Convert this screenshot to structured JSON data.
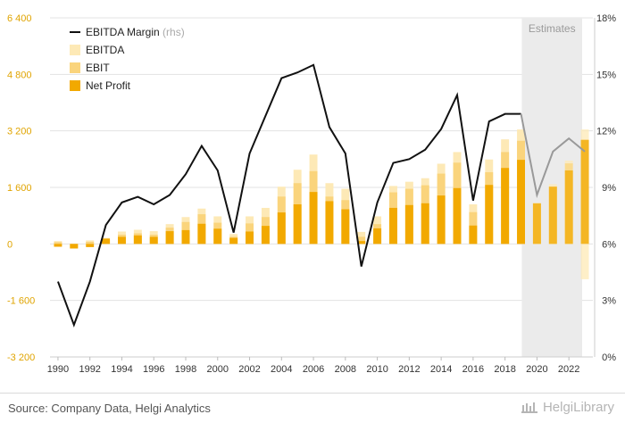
{
  "chart_data": {
    "type": "bar+line",
    "title": "",
    "estimates_label": "Estimates",
    "estimate_from_year": 2020,
    "years": [
      1990,
      1991,
      1992,
      1993,
      1994,
      1995,
      1996,
      1997,
      1998,
      1999,
      2000,
      2001,
      2002,
      2003,
      2004,
      2005,
      2006,
      2007,
      2008,
      2009,
      2010,
      2011,
      2012,
      2013,
      2014,
      2015,
      2016,
      2017,
      2018,
      2019,
      2020,
      2021,
      2022,
      2023
    ],
    "x_tick_labels": [
      "1990",
      "1992",
      "1994",
      "1996",
      "1998",
      "2000",
      "2002",
      "2004",
      "2006",
      "2008",
      "2010",
      "2012",
      "2014",
      "2016",
      "2018",
      "2020",
      "2022"
    ],
    "left_axis": {
      "ylim": [
        -3200,
        6400
      ],
      "ticks": [
        "-3 200",
        "-1 600",
        "0",
        "1 600",
        "3 200",
        "4 800",
        "6 400"
      ],
      "tick_values": [
        -3200,
        -1600,
        0,
        1600,
        3200,
        4800,
        6400
      ]
    },
    "right_axis": {
      "ylim": [
        0,
        18
      ],
      "ticks": [
        "0%",
        "3%",
        "6%",
        "9%",
        "12%",
        "15%",
        "18%"
      ],
      "tick_values": [
        0,
        3,
        6,
        9,
        12,
        15,
        18
      ]
    },
    "series": [
      {
        "name": "EBITDA",
        "kind": "bar",
        "color": "#fde9b6",
        "values": [
          80,
          -80,
          100,
          170,
          350,
          400,
          360,
          560,
          760,
          1000,
          780,
          280,
          780,
          1020,
          1620,
          2100,
          2530,
          1720,
          1560,
          340,
          780,
          1640,
          1760,
          1860,
          2270,
          2600,
          1120,
          2390,
          2960,
          3240,
          1160,
          1690,
          2360,
          3240
        ]
      },
      {
        "name": "EBIT",
        "kind": "bar",
        "color": "#fad47c",
        "values": [
          50,
          -130,
          60,
          110,
          260,
          300,
          260,
          460,
          620,
          840,
          600,
          200,
          580,
          760,
          1340,
          1720,
          2060,
          1340,
          1240,
          200,
          560,
          1460,
          1560,
          1660,
          1990,
          2300,
          900,
          2030,
          2600,
          2920,
          1140,
          1620,
          2280,
          2960
        ]
      },
      {
        "name": "Net Profit",
        "kind": "bar",
        "color": "#f2a900",
        "values": [
          -80,
          -130,
          -90,
          150,
          200,
          240,
          200,
          360,
          390,
          570,
          430,
          170,
          350,
          510,
          890,
          1120,
          1470,
          1210,
          980,
          80,
          440,
          1020,
          1100,
          1150,
          1370,
          1580,
          520,
          1670,
          2150,
          2380,
          1150,
          1620,
          2080,
          2940
        ]
      },
      {
        "name": "EBITDA Margin",
        "name_suffix": "(rhs)",
        "kind": "line",
        "axis": "right",
        "color": "#111111",
        "estimate_color": "#999999",
        "values": [
          4.0,
          1.7,
          4.0,
          7.0,
          8.2,
          8.5,
          8.1,
          8.6,
          9.7,
          11.2,
          9.9,
          6.6,
          10.8,
          12.8,
          14.8,
          15.1,
          15.5,
          12.2,
          10.8,
          4.8,
          8.2,
          10.3,
          10.5,
          11.0,
          12.1,
          13.9,
          8.3,
          12.5,
          12.9,
          12.9,
          8.6,
          10.9,
          11.6,
          10.9
        ]
      }
    ],
    "estimate_overrides": {
      "EBITDA_low_2023": -1000
    },
    "legend": [
      {
        "label": "EBITDA Margin",
        "suffix": "(rhs)",
        "symbol": "line",
        "color": "#111111"
      },
      {
        "label": "EBITDA",
        "suffix": "",
        "symbol": "square",
        "color": "#fde9b6"
      },
      {
        "label": "EBIT",
        "suffix": "",
        "symbol": "square",
        "color": "#fad47c"
      },
      {
        "label": "Net Profit",
        "suffix": "",
        "symbol": "square",
        "color": "#f2a900"
      }
    ]
  },
  "footer": {
    "source": "Source: Company Data, Helgi Analytics",
    "brand": "HelgiLibrary"
  }
}
